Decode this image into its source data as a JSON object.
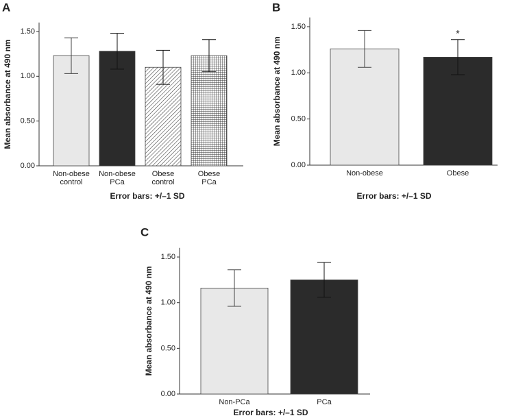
{
  "chart_data": [
    {
      "type": "bar",
      "panel": "A",
      "ylabel": "Mean absorbance at 490 nm",
      "xlabel": "Error bars: +/–1 SD",
      "categories": [
        "Non-obese\ncontrol",
        "Non-obese\nPCa",
        "Obese\ncontrol",
        "Obese\nPCa"
      ],
      "values": [
        1.23,
        1.28,
        1.1,
        1.23
      ],
      "errors": [
        0.2,
        0.2,
        0.19,
        0.18
      ],
      "colors": [
        "#e8e8e8",
        "#2b2b2b",
        "#555555",
        "#555555"
      ],
      "bar_styles": [
        "solid",
        "solid",
        "hatch",
        "grid"
      ],
      "ylim": [
        0,
        1.6
      ],
      "yticks": [
        {
          "value": 0,
          "label": "0.00"
        },
        {
          "value": 0.5,
          "label": "0.50"
        },
        {
          "value": 1,
          "label": "1.00"
        },
        {
          "value": 1.5,
          "label": "1.50"
        }
      ]
    },
    {
      "type": "bar",
      "panel": "B",
      "ylabel": "Mean absorbance at 490 nm",
      "xlabel": "Error bars: +/–1 SD",
      "categories": [
        "Non-obese",
        "Obese"
      ],
      "values": [
        1.26,
        1.17
      ],
      "errors": [
        0.2,
        0.19
      ],
      "colors": [
        "#e8e8e8",
        "#2b2b2b"
      ],
      "bar_styles": [
        "solid",
        "solid"
      ],
      "annotation": {
        "text": "*",
        "category": "Obese"
      },
      "ylim": [
        0,
        1.6
      ],
      "yticks": [
        {
          "value": 0,
          "label": "0.00"
        },
        {
          "value": 0.5,
          "label": "0.50"
        },
        {
          "value": 1,
          "label": "1.00"
        },
        {
          "value": 1.5,
          "label": "1.50"
        }
      ]
    },
    {
      "type": "bar",
      "panel": "C",
      "ylabel": "Mean absorbance at 490 nm",
      "xlabel": "Error bars: +/–1 SD",
      "categories": [
        "Non-PCa",
        "PCa"
      ],
      "values": [
        1.16,
        1.25
      ],
      "errors": [
        0.2,
        0.19
      ],
      "colors": [
        "#e8e8e8",
        "#2b2b2b"
      ],
      "bar_styles": [
        "solid",
        "solid"
      ],
      "ylim": [
        0,
        1.6
      ],
      "yticks": [
        {
          "value": 0,
          "label": "0.00"
        },
        {
          "value": 0.5,
          "label": "0.50"
        },
        {
          "value": 1,
          "label": "1.00"
        },
        {
          "value": 1.5,
          "label": "1.50"
        }
      ]
    }
  ]
}
